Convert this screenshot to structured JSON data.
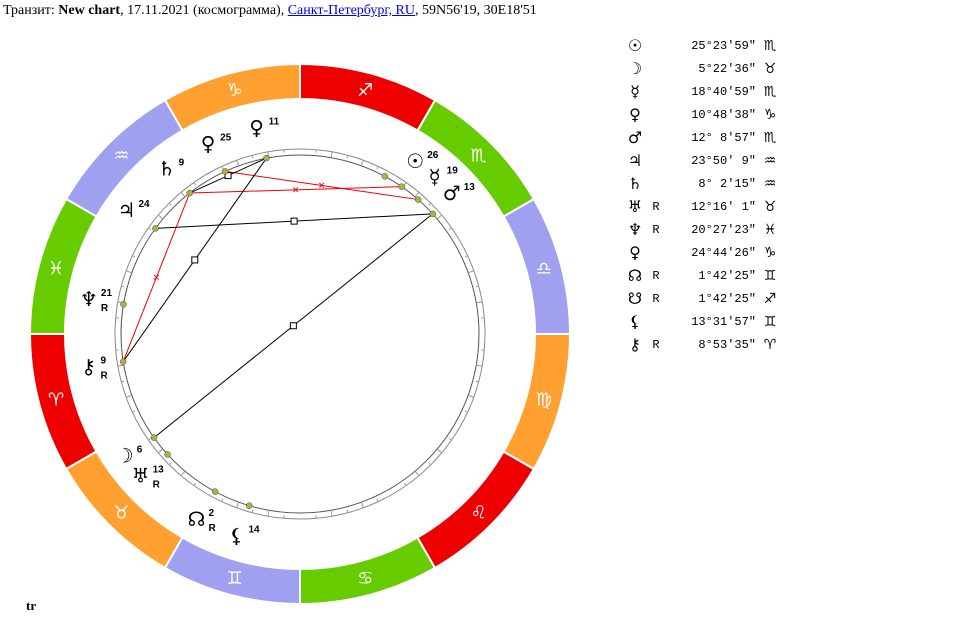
{
  "header": {
    "prefix": "Транзит: ",
    "chart_name": "New chart",
    "date_type": ", 17.11.2021 (космограмма), ",
    "location_link": "Санкт-Петербург, RU",
    "coords": ", 59N56'19, 30E18'51"
  },
  "footer": {
    "label": "tr"
  },
  "colors": {
    "fire": "#ee0000",
    "earth": "#ffa030",
    "air": "#a0a0f0",
    "water": "#66cc00",
    "aspect_hard": "#ee0000",
    "aspect_soft": "#000000",
    "planet_dot": "#b0b040"
  },
  "signs": [
    {
      "name": "aries",
      "glyph": "♈",
      "element": "fire"
    },
    {
      "name": "taurus",
      "glyph": "♉",
      "element": "earth"
    },
    {
      "name": "gemini",
      "glyph": "♊",
      "element": "air"
    },
    {
      "name": "cancer",
      "glyph": "♋",
      "element": "water"
    },
    {
      "name": "leo",
      "glyph": "♌",
      "element": "fire"
    },
    {
      "name": "virgo",
      "glyph": "♍",
      "element": "earth"
    },
    {
      "name": "libra",
      "glyph": "♎",
      "element": "air"
    },
    {
      "name": "scorpio",
      "glyph": "♏",
      "element": "water"
    },
    {
      "name": "sagittarius",
      "glyph": "♐",
      "element": "fire"
    },
    {
      "name": "capricorn",
      "glyph": "♑",
      "element": "earth"
    },
    {
      "name": "aquarius",
      "glyph": "♒",
      "element": "air"
    },
    {
      "name": "pisces",
      "glyph": "♓",
      "element": "water"
    }
  ],
  "planets": [
    {
      "key": "sun",
      "glyph": "☉",
      "retro": "",
      "deg_text": "25°23′59″",
      "sign": "♏",
      "label": "26",
      "longitude": 235.4
    },
    {
      "key": "moon",
      "glyph": "☽",
      "retro": "",
      "deg_text": "5°22′36″",
      "sign": "♉",
      "label": "6",
      "longitude": 35.37
    },
    {
      "key": "mercury",
      "glyph": "☿",
      "retro": "",
      "deg_text": "18°40′59″",
      "sign": "♏",
      "label": "19",
      "longitude": 228.68
    },
    {
      "key": "venus",
      "glyph": "♀",
      "retro": "",
      "deg_text": "10°48′38″",
      "sign": "♑",
      "label": "11",
      "longitude": 280.81
    },
    {
      "key": "mars",
      "glyph": "♂",
      "retro": "",
      "deg_text": "12° 8′57″",
      "sign": "♏",
      "label": "13",
      "longitude": 222.15
    },
    {
      "key": "jupiter",
      "glyph": "♃",
      "retro": "",
      "deg_text": "23°50′ 9″",
      "sign": "♒",
      "label": "24",
      "longitude": 323.84
    },
    {
      "key": "saturn",
      "glyph": "♄",
      "retro": "",
      "deg_text": "8° 2′15″",
      "sign": "♒",
      "label": "9",
      "longitude": 308.04
    },
    {
      "key": "uranus",
      "glyph": "♅",
      "retro": "R",
      "deg_text": "12°16′ 1″",
      "sign": "♉",
      "label": "13",
      "longitude": 42.27
    },
    {
      "key": "neptune",
      "glyph": "♆",
      "retro": "R",
      "deg_text": "20°27′23″",
      "sign": "♓",
      "label": "21",
      "longitude": 350.46
    },
    {
      "key": "pluto",
      "glyph": "♀",
      "retro": "",
      "deg_text": "24°44′26″",
      "sign": "♑",
      "label": "25",
      "longitude": 294.74
    },
    {
      "key": "node",
      "glyph": "☊",
      "retro": "R",
      "deg_text": "1°42′25″",
      "sign": "♊",
      "label": "2",
      "longitude": 61.71
    },
    {
      "key": "south-node",
      "glyph": "☋",
      "retro": "R",
      "deg_text": "1°42′25″",
      "sign": "♐",
      "label": "2",
      "longitude": 241.71
    },
    {
      "key": "lilith",
      "glyph": "⚸",
      "retro": "",
      "deg_text": "13°31′57″",
      "sign": "♊",
      "label": "14",
      "longitude": 73.53
    },
    {
      "key": "chiron",
      "glyph": "⚷",
      "retro": "R",
      "deg_text": "8°53′35″",
      "sign": "♈",
      "label": "9",
      "longitude": 8.89
    }
  ],
  "aspects": [
    {
      "a": "sun",
      "b": "saturn",
      "kind": "hard"
    },
    {
      "a": "mercury",
      "b": "pluto",
      "kind": "hard"
    },
    {
      "a": "mars",
      "b": "jupiter",
      "kind": "soft"
    },
    {
      "a": "mars",
      "b": "moon",
      "kind": "soft"
    },
    {
      "a": "venus",
      "b": "chiron",
      "kind": "soft"
    },
    {
      "a": "venus",
      "b": "saturn",
      "kind": "soft"
    },
    {
      "a": "saturn",
      "b": "chiron",
      "kind": "hard"
    }
  ]
}
